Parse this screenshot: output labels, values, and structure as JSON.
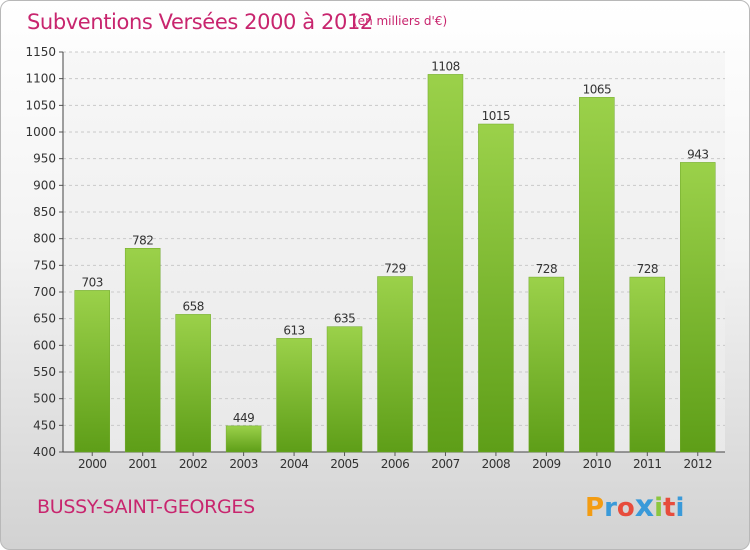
{
  "header": {
    "title": "Subventions Versées 2000 à 2012",
    "subtitle": "(en milliers d'€)"
  },
  "footer": {
    "city": "BUSSY-SAINT-GEORGES",
    "logo_letters": [
      "P",
      "r",
      "o",
      "x",
      "i",
      "t",
      "i"
    ],
    "logo_colors": [
      "#f39c12",
      "#3a9ad9",
      "#e74c3c",
      "#3a9ad9",
      "#8cc63f",
      "#e74c3c",
      "#3a9ad9"
    ]
  },
  "chart_data": {
    "type": "bar",
    "categories": [
      "2000",
      "2001",
      "2002",
      "2003",
      "2004",
      "2005",
      "2006",
      "2007",
      "2008",
      "2009",
      "2010",
      "2011",
      "2012"
    ],
    "values": [
      703,
      782,
      658,
      449,
      613,
      635,
      729,
      1108,
      1015,
      728,
      1065,
      728,
      943
    ],
    "ylim": [
      400,
      1150
    ],
    "yticks": [
      400,
      450,
      500,
      550,
      600,
      650,
      700,
      750,
      800,
      850,
      900,
      950,
      1000,
      1050,
      1100,
      1150
    ],
    "grid": true,
    "bar_color_top": "#9bd14a",
    "bar_color_bottom": "#5e9e18",
    "text_color": "#333333"
  }
}
